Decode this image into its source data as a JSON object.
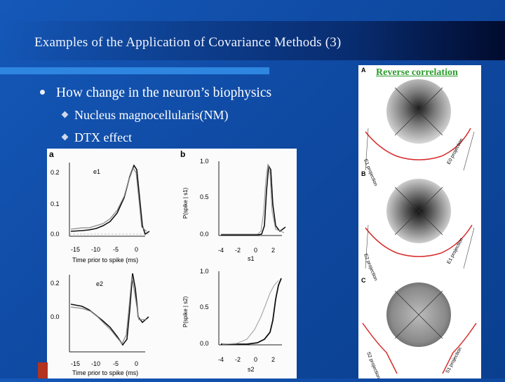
{
  "slide": {
    "title": "Examples of the Application of Covariance Methods (3)",
    "bullet": "How change in the neuron’s biophysics",
    "subbullets": [
      "Nucleus magnocellularis(NM)",
      "DTX effect"
    ],
    "reverse_label": "Reverse correlation"
  },
  "left_figure": {
    "panel_a": "a",
    "panel_b": "b",
    "e1_label": "e1",
    "e2_label": "e2",
    "e1_yticks": [
      "0.2",
      "0.1",
      "0.0"
    ],
    "e2_yticks": [
      "0.2",
      "0.0"
    ],
    "x_ticks_time": [
      "-15",
      "-10",
      "-5",
      "0"
    ],
    "x_label_time": "Time prior to spike (ms)",
    "p_yticks": [
      "1.0",
      "0.5",
      "0.0"
    ],
    "p1_ylabel": "P(spike | s1)",
    "p2_ylabel": "P(spike | s2)",
    "s_ticks": [
      "-4",
      "-2",
      "0",
      "2"
    ],
    "s1_label": "s1",
    "s2_label": "s2"
  },
  "right_figure": {
    "panels": [
      "A",
      "B",
      "C"
    ],
    "proj_a": [
      "E1 projection",
      "E0 projection"
    ],
    "proj_b": [
      "E2 projection",
      "E1 projection"
    ],
    "proj_c": [
      "S2 projection",
      "S1 projection"
    ]
  },
  "colors": {
    "background": "#1558b8",
    "accent_bar": "#2e86e0",
    "label_green": "#2a9a2a",
    "curve_red": "#d62b2b"
  }
}
